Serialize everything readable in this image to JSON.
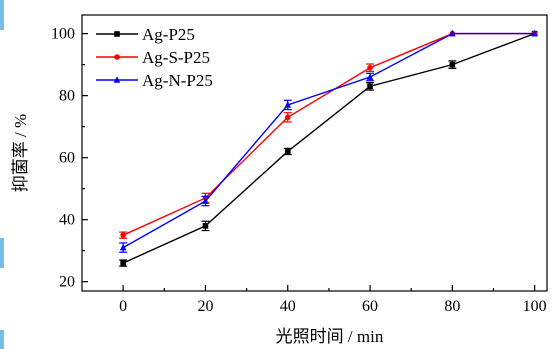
{
  "chart_data": {
    "type": "line",
    "xlabel": "光照时间 / min",
    "ylabel": "抑菌率 / %",
    "x": [
      0,
      20,
      40,
      60,
      80,
      100
    ],
    "xlim": [
      -10,
      103
    ],
    "ylim": [
      17,
      106
    ],
    "xticks": [
      0,
      20,
      40,
      60,
      80,
      100
    ],
    "yticks": [
      20,
      40,
      60,
      80,
      100
    ],
    "grid": false,
    "legend_position": "top-left",
    "error_bars": true,
    "series": [
      {
        "name": "Ag-P25",
        "color": "#000000",
        "marker": "square",
        "values": [
          26,
          38,
          62,
          83,
          90,
          100
        ],
        "errors": [
          1,
          1.5,
          1,
          1.2,
          1.2,
          0
        ]
      },
      {
        "name": "Ag-S-P25",
        "color": "#ff0000",
        "marker": "circle",
        "values": [
          35,
          47,
          73,
          89,
          100,
          100
        ],
        "errors": [
          1,
          1.5,
          1.5,
          1.2,
          0,
          0
        ]
      },
      {
        "name": "Ag-N-P25",
        "color": "#0000ff",
        "marker": "triangle",
        "values": [
          31,
          46,
          77,
          86,
          100,
          100
        ],
        "errors": [
          1.5,
          1.5,
          1.5,
          1.2,
          0,
          0
        ]
      }
    ]
  }
}
